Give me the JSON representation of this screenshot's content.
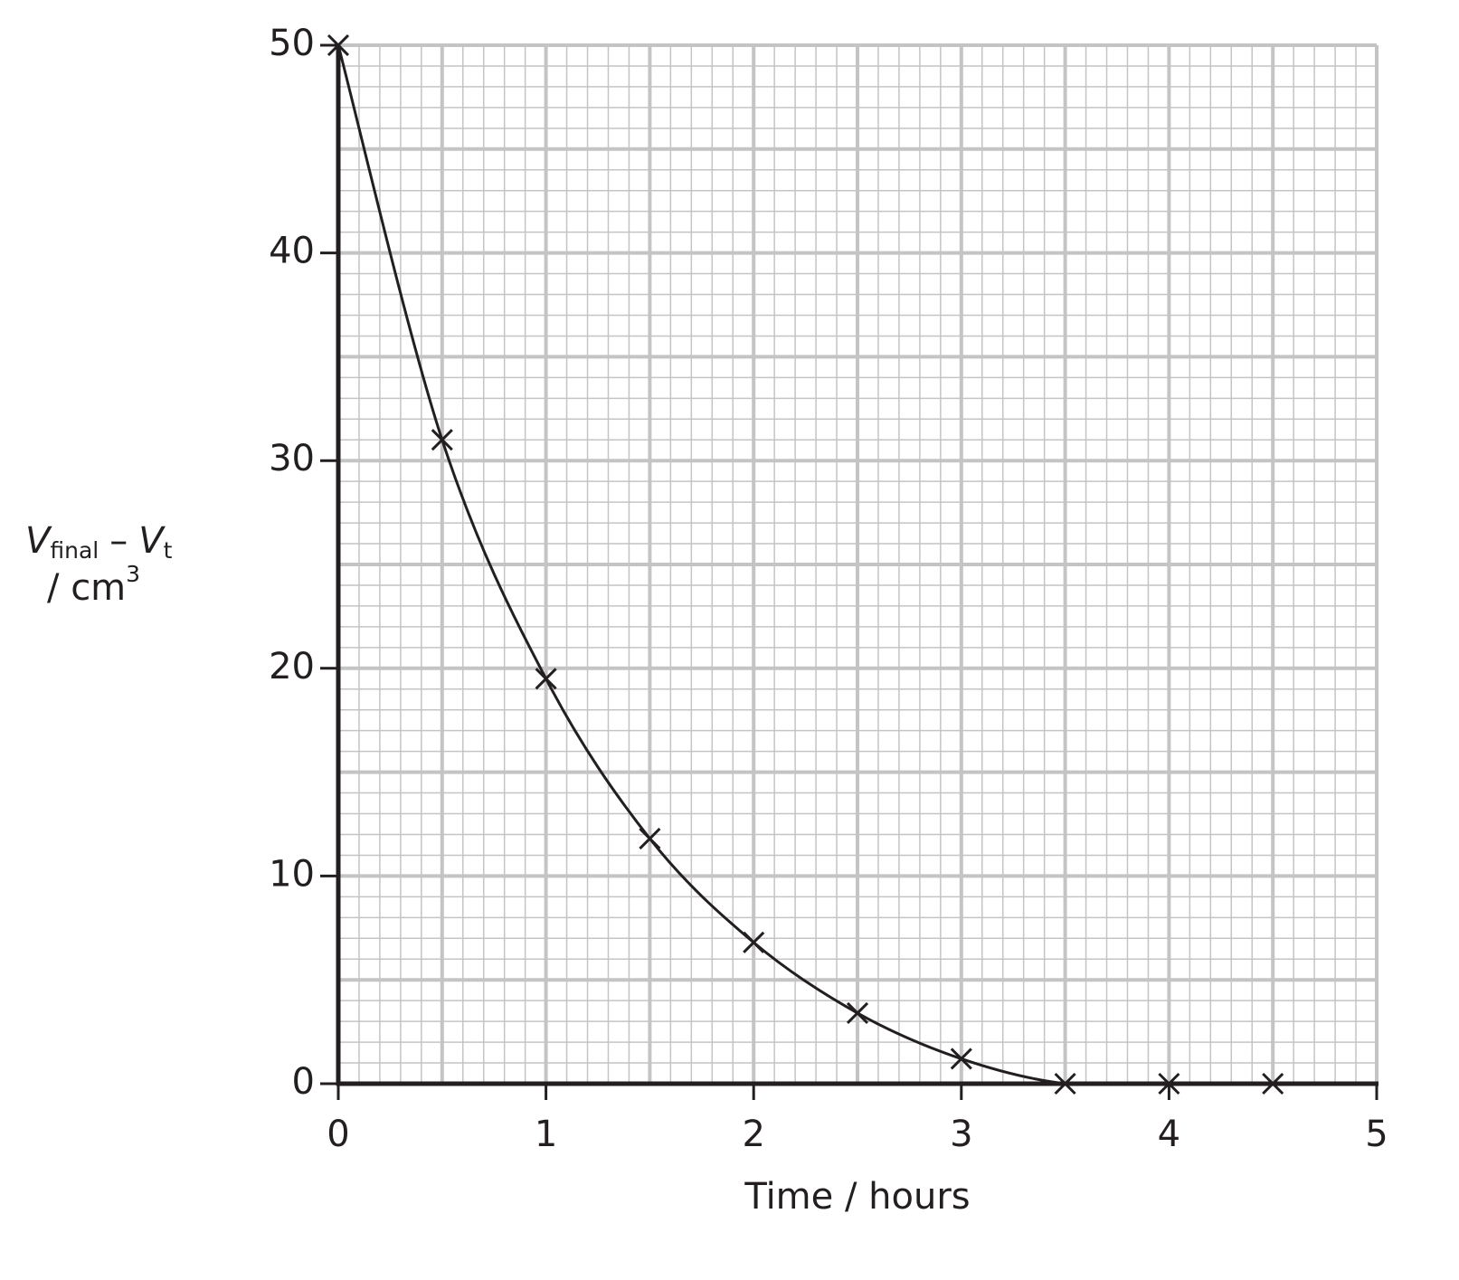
{
  "chart_data": {
    "type": "scatter",
    "xlabel": "Time / hours",
    "ylabel": {
      "v1": "V",
      "sub1": "final",
      "minus": "–",
      "v2": "V",
      "sub2": "t",
      "unit": "/ cm",
      "sup": "3"
    },
    "x": [
      0,
      0.5,
      1,
      1.5,
      2,
      2.5,
      3,
      3.5,
      4,
      4.5
    ],
    "series": [
      {
        "color": "#231f20",
        "values": [
          50,
          31,
          19.5,
          11.8,
          6.8,
          3.4,
          1.2,
          0,
          0,
          0
        ]
      }
    ],
    "xlim": [
      0,
      5
    ],
    "ylim": [
      0,
      50
    ],
    "xticks": [
      0,
      1,
      2,
      3,
      4,
      5
    ],
    "yticks": [
      0,
      10,
      20,
      30,
      40,
      50
    ],
    "grid": true,
    "grid_major": {
      "x": 0.5,
      "y": 5
    },
    "grid_minor": {
      "x": 0.1,
      "y": 1
    },
    "smooth_curve": true
  }
}
